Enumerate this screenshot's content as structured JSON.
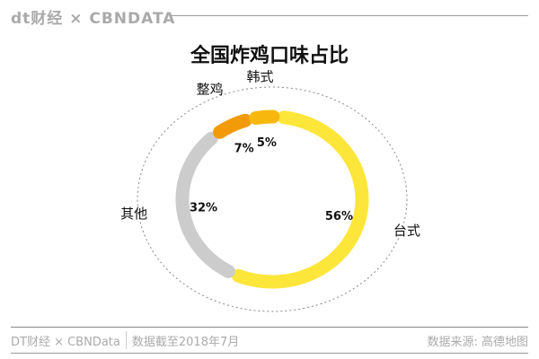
{
  "header": {
    "brand": "dt财经 × CBNDATA"
  },
  "chart_data": {
    "type": "pie",
    "title": "全国炸鸡口味占比",
    "categories": [
      "台式",
      "其他",
      "整鸡",
      "韩式"
    ],
    "values": [
      56,
      32,
      7,
      5
    ],
    "labels": [
      "56%",
      "32%",
      "7%",
      "5%"
    ],
    "colors": [
      "#fde63a",
      "#cccccc",
      "#f29a07",
      "#f7b70d"
    ],
    "style": "donut"
  },
  "footer": {
    "left": "DT财经 × CBNData",
    "date": "数据截至2018年7月",
    "source": "数据来源: 高德地图"
  }
}
